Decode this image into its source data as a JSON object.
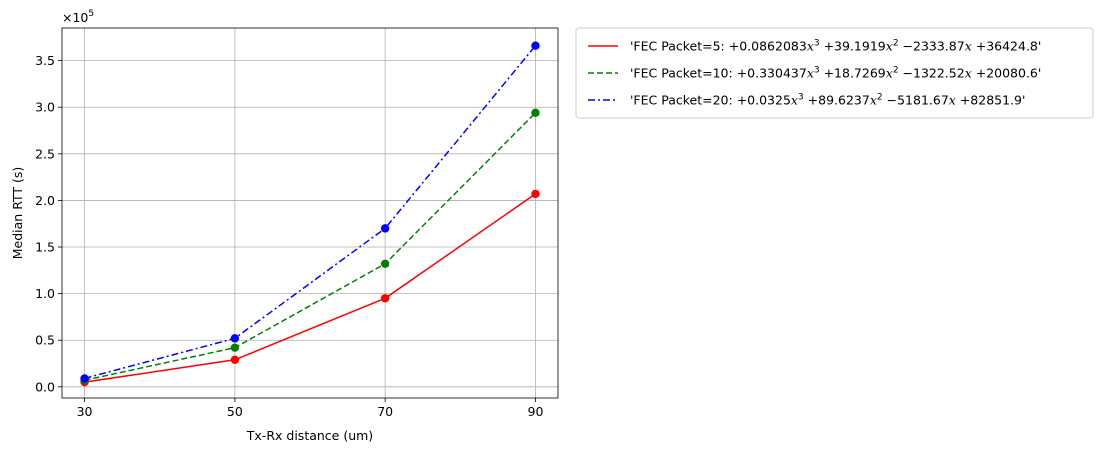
{
  "chart_data": {
    "type": "line",
    "xlabel": "Tx-Rx distance (um)",
    "ylabel": "Median RTT (s)",
    "y_multiplier": "×10",
    "y_multiplier_exp": "5",
    "x": [
      30,
      50,
      70,
      90
    ],
    "xticks": [
      "30",
      "50",
      "70",
      "90"
    ],
    "yticks": [
      "0.0",
      "0.5",
      "1.0",
      "1.5",
      "2.0",
      "2.5",
      "3.0",
      "3.5"
    ],
    "xlim": [
      27,
      93
    ],
    "ylim": [
      -0.12,
      3.85
    ],
    "grid": true,
    "legend_placement": "outside-top-right",
    "series": [
      {
        "prefix": "'FEC Packet=5: ",
        "terms": [
          "+0.0862083",
          "x",
          "3",
          "+39.1919",
          "x",
          "2",
          "−2333.87",
          "x",
          "+36424.8"
        ],
        "name": "'FEC Packet=5: +0.0862083x^3 + 39.1919x^2 - 2333.87x + 36424.8'",
        "color": "#ff0000",
        "dash": "solid",
        "values": [
          0.05,
          0.29,
          0.95,
          2.07
        ]
      },
      {
        "prefix": "'FEC Packet=10: ",
        "terms": [
          "+0.330437",
          "x",
          "3",
          "+18.7269",
          "x",
          "2",
          "−1322.52",
          "x",
          "+20080.6"
        ],
        "name": "'FEC Packet=10: +0.330437x^3 + 18.7269x^2 - 1322.52x + 20080.6'",
        "color": "#008000",
        "dash": "dashed",
        "values": [
          0.07,
          0.42,
          1.32,
          2.94
        ]
      },
      {
        "prefix": "'FEC Packet=20: ",
        "terms": [
          "+0.0325",
          "x",
          "3",
          "+89.6237",
          "x",
          "2",
          "−5181.67",
          "x",
          "+82851.9"
        ],
        "name": "'FEC Packet=20: +0.0325x^3 + 89.6237x^2 - 5181.67x + 82851.9'",
        "color": "#0000ff",
        "dash": "dashdot",
        "values": [
          0.09,
          0.52,
          1.7,
          3.66
        ]
      }
    ]
  }
}
